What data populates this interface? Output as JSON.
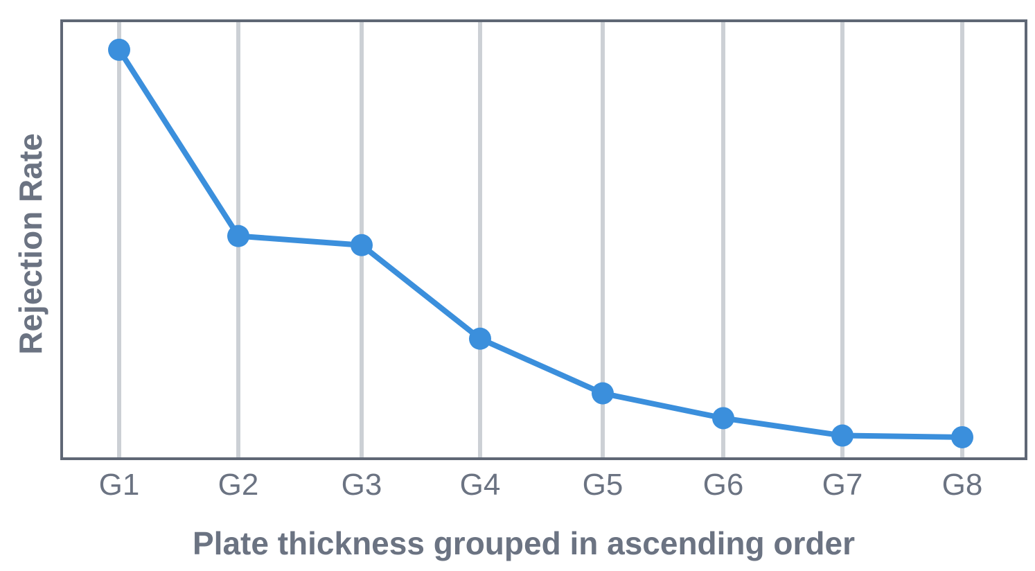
{
  "chart_data": {
    "type": "line",
    "title": "",
    "xlabel": "Plate thickness grouped in ascending order",
    "ylabel": "Rejection Rate",
    "categories": [
      "G1",
      "G2",
      "G3",
      "G4",
      "G5",
      "G6",
      "G7",
      "G8"
    ],
    "series": [
      {
        "name": "",
        "values": [
          1.0,
          0.55,
          0.528,
          0.302,
          0.17,
          0.11,
          0.068,
          0.064
        ]
      }
    ],
    "ylim": [
      0.012,
      1.07
    ],
    "grid": {
      "vertical": true,
      "horizontal": false
    },
    "legend": "none",
    "y_tick_labels_shown": false,
    "colors": {
      "series": "#3b8fdc",
      "axis": "#5f6775",
      "grid": "#ccd0d5",
      "text": "#6b7382"
    }
  }
}
